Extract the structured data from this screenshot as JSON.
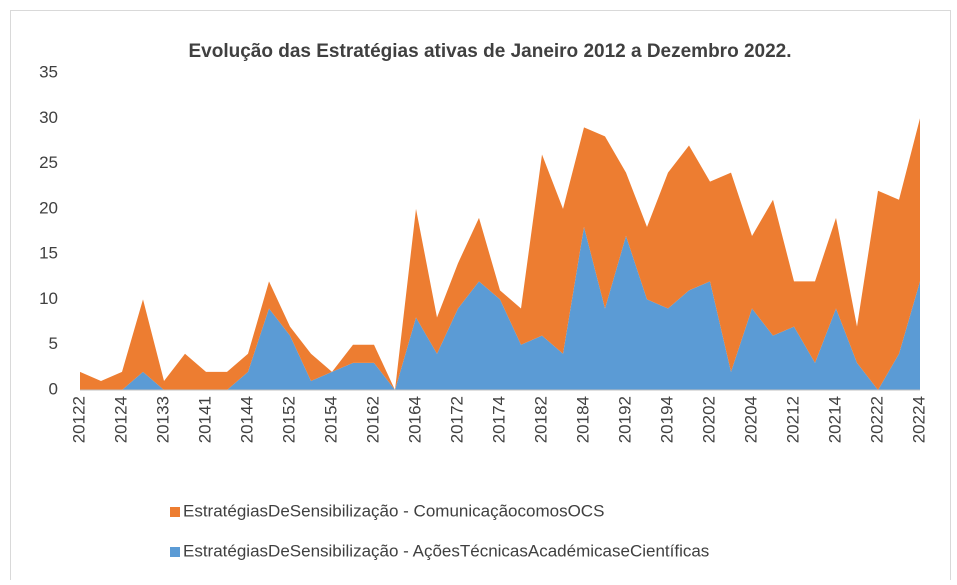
{
  "chart_data": {
    "type": "stacked_area",
    "title": "Evolução das Estratégias ativas de Janeiro 2012 a Dezembro 2022.",
    "categories": [
      "20122",
      null,
      "20124",
      null,
      "20133",
      null,
      "20141",
      null,
      "20144",
      null,
      "20152",
      null,
      "20154",
      null,
      "20162",
      null,
      "20164",
      null,
      "20172",
      null,
      "20174",
      null,
      "20182",
      null,
      "20184",
      null,
      "20192",
      null,
      "20194",
      null,
      "20202",
      null,
      "20204",
      null,
      "20212",
      null,
      "20214",
      null,
      "20222",
      null,
      "20224"
    ],
    "series": [
      {
        "name": "EstratégiasDeSensibilização - AçõesTécnicasAcadémicaseCientíficas",
        "color": "#5b9bd5",
        "values": [
          0,
          0,
          0,
          2,
          0,
          0,
          0,
          0,
          2,
          9,
          6,
          1,
          2,
          3,
          3,
          0,
          8,
          4,
          9,
          12,
          10,
          5,
          6,
          4,
          18,
          9,
          17,
          10,
          9,
          11,
          12,
          2,
          9,
          6,
          7,
          3,
          9,
          3,
          0,
          4,
          12
        ]
      },
      {
        "name": "EstratégiasDeSensibilização - ComunicaçãocomosOCS",
        "color": "#ed7d31",
        "values": [
          2,
          1,
          2,
          8,
          1,
          4,
          2,
          2,
          2,
          3,
          1,
          3,
          0,
          2,
          2,
          0,
          12,
          4,
          5,
          7,
          1,
          4,
          20,
          16,
          11,
          19,
          7,
          8,
          15,
          16,
          11,
          22,
          8,
          15,
          5,
          9,
          10,
          4,
          22,
          17,
          18
        ]
      }
    ],
    "ylim": [
      0,
      35
    ],
    "yticks": [
      0,
      5,
      10,
      15,
      20,
      25,
      30,
      35
    ],
    "grid": false
  }
}
